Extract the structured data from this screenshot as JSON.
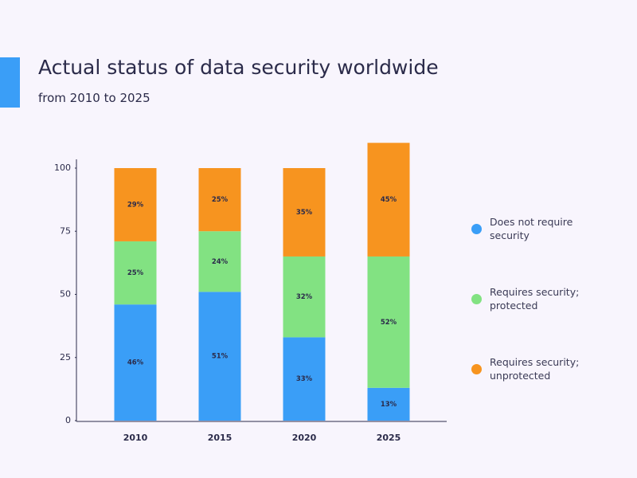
{
  "chart_data": {
    "type": "stacked_bar",
    "title": "Actual status of data security worldwide",
    "subtitle": "from 2010 to 2025",
    "categories": [
      "2010",
      "2015",
      "2020",
      "2025"
    ],
    "series": [
      {
        "name": "Does not require security",
        "color": "#3a9ef7",
        "values": [
          46,
          51,
          33,
          13
        ],
        "value_labels": [
          "46%",
          "51%",
          "33%",
          "13%"
        ]
      },
      {
        "name": "Requires security; protected",
        "color": "#82e282",
        "values": [
          25,
          24,
          32,
          52
        ],
        "value_labels": [
          "25%",
          "24%",
          "32%",
          "52%"
        ]
      },
      {
        "name": "Requires security; unprotected",
        "color": "#f7941f",
        "values": [
          29,
          25,
          35,
          45
        ],
        "value_labels": [
          "29%",
          "25%",
          "35%",
          "45%"
        ]
      }
    ],
    "ylim": [
      0,
      100
    ],
    "yticks": [
      0,
      25,
      50,
      75,
      100
    ],
    "legend": "right"
  }
}
